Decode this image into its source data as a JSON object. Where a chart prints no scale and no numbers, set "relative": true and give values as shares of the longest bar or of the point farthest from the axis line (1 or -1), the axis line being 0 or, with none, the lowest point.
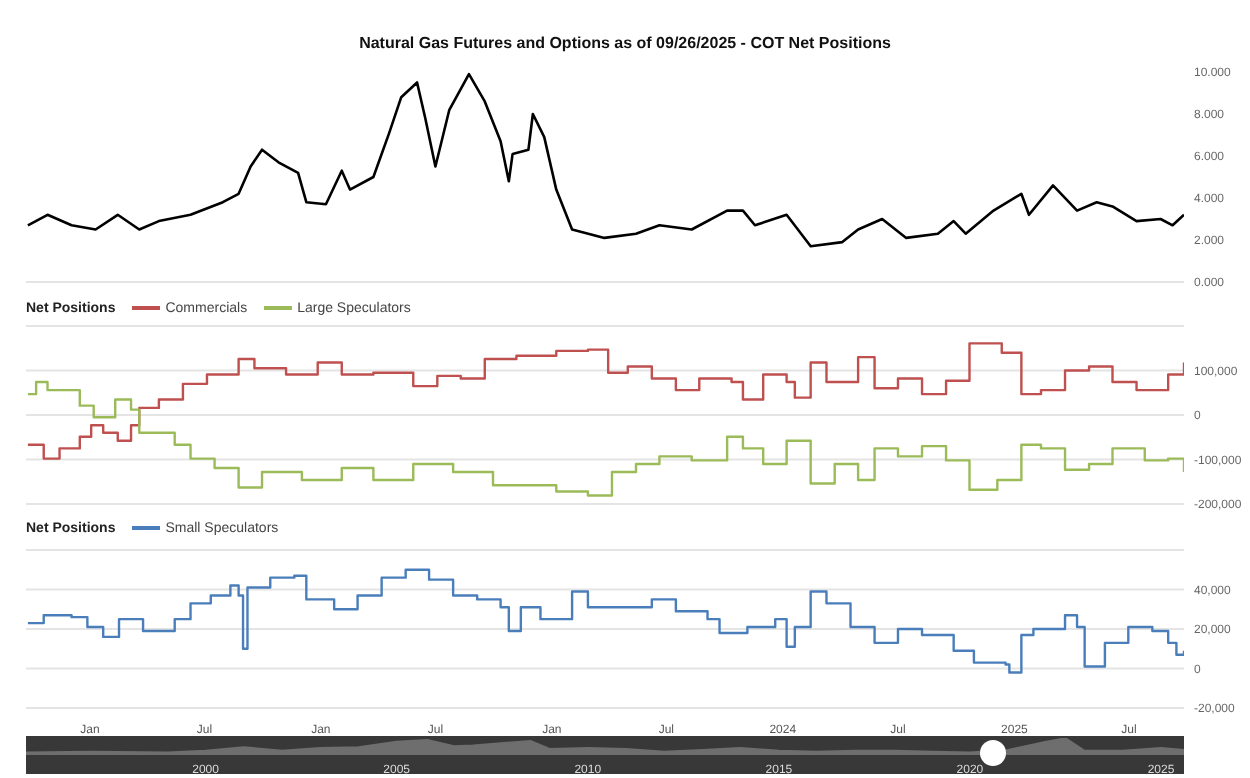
{
  "chart_data": [
    {
      "type": "line",
      "title": "Natural Gas Futures and Options as of 09/26/2025 - COT Net Positions",
      "xlim": [
        "2020-09-22",
        "2025-09-26"
      ],
      "tick_labels": "y",
      "ylim": [
        0,
        10
      ],
      "yticks": [
        {
          "value": 0,
          "label": "0.000"
        },
        {
          "value": 2,
          "label": "2.000"
        },
        {
          "value": 4,
          "label": "4.000"
        },
        {
          "value": 6,
          "label": "6.000"
        },
        {
          "value": 8,
          "label": "8.000"
        },
        {
          "value": 10,
          "label": "10.000"
        }
      ],
      "series": [
        {
          "color": "#000000",
          "x": [
            "2020-09-25",
            "2020-10-26",
            "2020-12-03",
            "2021-01-10",
            "2021-02-14",
            "2021-03-20",
            "2021-04-20",
            "2021-06-09",
            "2021-07-30",
            "2021-08-24",
            "2021-09-12",
            "2021-09-30",
            "2021-10-26",
            "2021-11-26",
            "2021-12-09",
            "2022-01-09",
            "2022-02-03",
            "2022-02-16",
            "2022-03-25",
            "2022-04-19",
            "2022-05-08",
            "2022-06-02",
            "2022-06-15",
            "2022-07-01",
            "2022-07-23",
            "2022-08-23",
            "2022-09-17",
            "2022-10-12",
            "2022-10-25",
            "2022-10-31",
            "2022-11-25",
            "2022-12-02",
            "2022-12-20",
            "2023-01-08",
            "2023-02-02",
            "2023-03-25",
            "2023-05-14",
            "2023-06-20",
            "2023-08-10",
            "2023-10-05",
            "2023-10-30",
            "2023-11-18",
            "2024-01-07",
            "2024-02-14",
            "2024-04-04",
            "2024-04-29",
            "2024-06-06",
            "2024-07-14",
            "2024-09-02",
            "2024-09-27",
            "2024-10-16",
            "2024-11-29",
            "2025-01-12",
            "2025-01-24",
            "2025-03-03",
            "2025-04-10",
            "2025-05-11",
            "2025-06-05",
            "2025-07-13",
            "2025-08-20",
            "2025-09-08",
            "2025-09-26"
          ],
          "values": [
            2.7,
            3.2,
            2.7,
            2.5,
            3.2,
            2.5,
            2.9,
            3.2,
            3.8,
            4.2,
            5.5,
            6.3,
            5.7,
            5.2,
            3.8,
            3.7,
            5.3,
            4.4,
            5.0,
            7.1,
            8.8,
            9.5,
            7.8,
            5.5,
            8.2,
            9.9,
            8.6,
            6.7,
            4.8,
            6.1,
            6.3,
            8.0,
            6.9,
            4.4,
            2.5,
            2.1,
            2.3,
            2.7,
            2.5,
            3.4,
            3.4,
            2.7,
            3.2,
            1.7,
            1.9,
            2.5,
            3.0,
            2.1,
            2.3,
            2.9,
            2.3,
            3.4,
            4.2,
            3.2,
            4.6,
            3.4,
            3.8,
            3.6,
            2.9,
            3.0,
            2.7,
            3.2
          ]
        }
      ]
    },
    {
      "type": "step",
      "legend": "top left",
      "legend_title": "Net Positions",
      "grid": "y",
      "xlim": [
        "2020-09-22",
        "2025-09-26"
      ],
      "tick_labels": "y",
      "ylim": [
        -200000,
        200000
      ],
      "yticks": [
        {
          "value": -200000,
          "label": "-200,000"
        },
        {
          "value": -100000,
          "label": "-100,000"
        },
        0,
        {
          "value": 100000,
          "label": "100,000"
        },
        {
          "value": 200000,
          "label": null
        }
      ],
      "series": [
        {
          "name": "Commercials",
          "color": "#bf5050",
          "x": [
            "2020-09-25",
            "2020-10-20",
            "2020-11-14",
            "2020-12-16",
            "2021-01-03",
            "2021-01-22",
            "2021-02-14",
            "2021-03-07",
            "2021-03-20",
            "2021-04-20",
            "2021-05-28",
            "2021-07-05",
            "2021-08-24",
            "2021-09-18",
            "2021-11-07",
            "2021-12-27",
            "2022-02-03",
            "2022-03-25",
            "2022-05-27",
            "2022-07-04",
            "2022-08-10",
            "2022-09-17",
            "2022-11-06",
            "2023-01-08",
            "2023-02-27",
            "2023-03-31",
            "2023-05-01",
            "2023-06-08",
            "2023-07-16",
            "2023-08-22",
            "2023-10-12",
            "2023-10-30",
            "2023-12-01",
            "2024-01-07",
            "2024-01-20",
            "2024-02-14",
            "2024-03-10",
            "2024-04-29",
            "2024-05-25",
            "2024-07-01",
            "2024-08-08",
            "2024-09-15",
            "2024-10-22",
            "2024-12-12",
            "2025-01-12",
            "2025-02-12",
            "2025-03-22",
            "2025-04-29",
            "2025-06-05",
            "2025-07-13",
            "2025-09-01",
            "2025-09-26"
          ],
          "values": [
            -67000,
            -98000,
            -75000,
            -49000,
            -23000,
            -40000,
            -58000,
            -23000,
            16000,
            35000,
            70000,
            91000,
            126000,
            105000,
            91000,
            118000,
            91000,
            95000,
            65000,
            88000,
            82000,
            126000,
            133000,
            144000,
            147000,
            95000,
            109000,
            82000,
            56000,
            82000,
            74000,
            35000,
            91000,
            74000,
            39000,
            118000,
            74000,
            130000,
            60000,
            82000,
            47000,
            77000,
            161000,
            140000,
            47000,
            56000,
            100000,
            109000,
            74000,
            56000,
            91000,
            118000
          ]
        },
        {
          "name": "Large Speculators",
          "color": "#9bbb59",
          "x": [
            "2020-09-25",
            "2020-10-08",
            "2020-10-26",
            "2020-12-16",
            "2021-01-07",
            "2021-02-10",
            "2021-03-07",
            "2021-03-20",
            "2021-05-15",
            "2021-06-09",
            "2021-07-17",
            "2021-08-24",
            "2021-09-30",
            "2021-12-02",
            "2022-02-03",
            "2022-03-25",
            "2022-05-27",
            "2022-07-29",
            "2022-09-30",
            "2022-11-19",
            "2023-01-08",
            "2023-02-27",
            "2023-04-06",
            "2023-05-14",
            "2023-06-20",
            "2023-08-10",
            "2023-10-05",
            "2023-10-30",
            "2023-12-01",
            "2024-01-07",
            "2024-02-14",
            "2024-03-23",
            "2024-04-29",
            "2024-05-25",
            "2024-07-01",
            "2024-08-08",
            "2024-09-15",
            "2024-10-22",
            "2024-12-05",
            "2025-01-12",
            "2025-02-12",
            "2025-03-22",
            "2025-04-29",
            "2025-06-05",
            "2025-07-26",
            "2025-09-01",
            "2025-09-26"
          ],
          "values": [
            47000,
            74000,
            56000,
            21000,
            -5000,
            35000,
            12000,
            -40000,
            -67000,
            -98000,
            -119000,
            -163000,
            -128000,
            -146000,
            -119000,
            -146000,
            -110000,
            -128000,
            -158000,
            -158000,
            -172000,
            -181000,
            -128000,
            -110000,
            -93000,
            -102000,
            -49000,
            -75000,
            -110000,
            -58000,
            -154000,
            -110000,
            -146000,
            -75000,
            -93000,
            -70000,
            -102000,
            -168000,
            -146000,
            -67000,
            -75000,
            -123000,
            -110000,
            -75000,
            -102000,
            -98000,
            -128000
          ]
        }
      ]
    },
    {
      "type": "step",
      "legend": "top left",
      "legend_title": "Net Positions",
      "grid": "y",
      "xlim": [
        "2020-09-22",
        "2025-09-26"
      ],
      "ylim": [
        -20000,
        60000
      ],
      "yticks": [
        {
          "value": -20000,
          "label": "-20,000"
        },
        0,
        {
          "value": 20000,
          "label": "20,000"
        },
        {
          "value": 40000,
          "label": "40,000"
        },
        {
          "value": 60000,
          "label": null
        }
      ],
      "xticks": [
        {
          "value": "2021-01-01",
          "label": "Jan"
        },
        {
          "value": "2021-07-01",
          "label": "Jul"
        },
        {
          "value": "2022-01-01",
          "label": "Jan"
        },
        {
          "value": "2022-07-01",
          "label": "Jul"
        },
        {
          "value": "2023-01-01",
          "label": "Jan"
        },
        {
          "value": "2023-07-01",
          "label": "Jul"
        },
        {
          "value": "2024-01-01",
          "label": "2024"
        },
        {
          "value": "2024-07-01",
          "label": "Jul"
        },
        {
          "value": "2025-01-01",
          "label": "2025"
        },
        {
          "value": "2025-07-01",
          "label": "Jul"
        }
      ],
      "series": [
        {
          "name": "Small Speculators",
          "color": "#4a7ebb",
          "x": [
            "2020-09-25",
            "2020-10-20",
            "2020-12-03",
            "2020-12-28",
            "2021-01-22",
            "2021-02-16",
            "2021-03-26",
            "2021-05-15",
            "2021-06-09",
            "2021-07-11",
            "2021-08-11",
            "2021-08-24",
            "2021-08-31",
            "2021-09-07",
            "2021-10-13",
            "2021-11-20",
            "2021-12-09",
            "2022-01-22",
            "2022-02-28",
            "2022-04-07",
            "2022-05-15",
            "2022-06-21",
            "2022-07-29",
            "2022-09-05",
            "2022-10-12",
            "2022-10-25",
            "2022-11-13",
            "2022-12-14",
            "2023-02-02",
            "2023-02-27",
            "2023-05-01",
            "2023-06-08",
            "2023-07-16",
            "2023-09-04",
            "2023-09-23",
            "2023-11-06",
            "2023-12-20",
            "2024-01-07",
            "2024-01-20",
            "2024-02-14",
            "2024-03-10",
            "2024-04-17",
            "2024-05-25",
            "2024-07-01",
            "2024-08-08",
            "2024-09-27",
            "2024-10-29",
            "2024-12-18",
            "2024-12-24",
            "2025-01-12",
            "2025-01-31",
            "2025-03-22",
            "2025-04-10",
            "2025-04-22",
            "2025-05-24",
            "2025-06-30",
            "2025-08-07",
            "2025-09-01",
            "2025-09-14",
            "2025-09-26"
          ],
          "values": [
            23000,
            27000,
            26000,
            21000,
            16000,
            25000,
            19000,
            25000,
            33000,
            37000,
            42000,
            37000,
            10000,
            41000,
            46000,
            47000,
            35000,
            30000,
            37000,
            46000,
            50000,
            45000,
            37000,
            35000,
            31000,
            19000,
            31000,
            25000,
            39000,
            31000,
            31000,
            35000,
            29000,
            25000,
            18000,
            21000,
            25000,
            11000,
            21000,
            39000,
            33000,
            21000,
            13000,
            20000,
            17000,
            9000,
            3000,
            2000,
            -2000,
            17000,
            20000,
            27000,
            21000,
            1000,
            13000,
            21000,
            19000,
            13000,
            7000,
            9000
          ]
        }
      ]
    },
    {
      "type": "area",
      "relative": true,
      "xlim": [
        1995.3,
        2025.6
      ],
      "xticks": [
        2000,
        2005,
        2010,
        2015,
        2020,
        2025
      ],
      "series": [
        {
          "color": "#6e6e6e",
          "x": [
            1995.3,
            1997,
            1999,
            2000,
            2001,
            2002,
            2003,
            2004,
            2005,
            2005.8,
            2006.5,
            2007,
            2008.5,
            2009,
            2010,
            2011,
            2012,
            2013,
            2014,
            2015,
            2016,
            2017,
            2018,
            2019,
            2020,
            2021,
            2022,
            2022.5,
            2023,
            2024,
            2025,
            2025.6
          ],
          "values": [
            0.2,
            0.25,
            0.2,
            0.3,
            0.5,
            0.3,
            0.45,
            0.5,
            0.8,
            0.9,
            0.55,
            0.6,
            0.85,
            0.4,
            0.45,
            0.4,
            0.25,
            0.35,
            0.45,
            0.3,
            0.25,
            0.3,
            0.3,
            0.25,
            0.2,
            0.35,
            0.8,
            1,
            0.3,
            0.3,
            0.45,
            0.35
          ]
        }
      ]
    }
  ]
}
